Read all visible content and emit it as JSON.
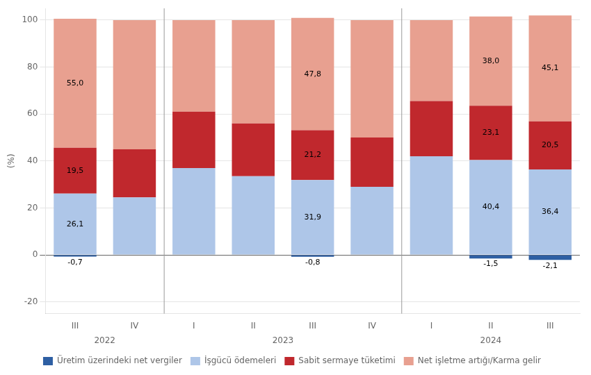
{
  "chart_data": {
    "type": "bar",
    "stacked": true,
    "categories": [
      "III",
      "IV",
      "I",
      "II",
      "III",
      "IV",
      "I",
      "II",
      "III"
    ],
    "groups": [
      {
        "label": "2022",
        "count": 2
      },
      {
        "label": "2023",
        "count": 4
      },
      {
        "label": "2024",
        "count": 3
      }
    ],
    "y_label": "(%)",
    "ylim": [
      -25,
      105
    ],
    "yticks": [
      -20,
      0,
      20,
      40,
      60,
      80,
      100
    ],
    "grid": true,
    "legend": "bottom",
    "data_labels": true,
    "series": [
      {
        "name": "Üretim üzerindeki net vergiler",
        "color": "#2e5fa3",
        "values": [
          -0.7,
          0.0,
          0.0,
          0.0,
          -0.8,
          0.0,
          0.0,
          -1.5,
          -2.1
        ],
        "value_labels": [
          "-0,7",
          null,
          null,
          null,
          "-0,8",
          null,
          null,
          "-1,5",
          "-2,1"
        ]
      },
      {
        "name": "İşgücü ödemeleri",
        "color": "#aec6e8",
        "values": [
          26.1,
          24.5,
          37.0,
          33.5,
          31.9,
          29.0,
          42.0,
          40.4,
          36.4
        ],
        "value_labels": [
          "26,1",
          null,
          null,
          null,
          "31,9",
          null,
          null,
          "40,4",
          "36,4"
        ]
      },
      {
        "name": "Sabit sermaye tüketimi",
        "color": "#c0282d",
        "values": [
          19.5,
          20.5,
          24.0,
          22.5,
          21.2,
          21.0,
          23.5,
          23.1,
          20.5
        ],
        "value_labels": [
          "19,5",
          null,
          null,
          null,
          "21,2",
          null,
          null,
          "23,1",
          "20,5"
        ]
      },
      {
        "name": "Net işletme artığı/Karma gelir",
        "color": "#e8a090",
        "values": [
          55.0,
          55.0,
          39.0,
          44.0,
          47.8,
          50.0,
          34.5,
          38.0,
          45.1
        ],
        "value_labels": [
          "55,0",
          null,
          null,
          null,
          "47,8",
          null,
          null,
          "38,0",
          "45,1"
        ]
      }
    ]
  }
}
